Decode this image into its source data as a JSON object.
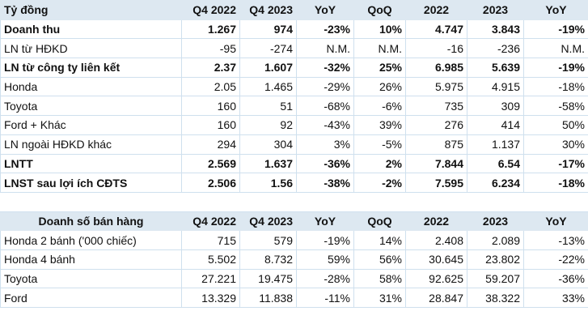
{
  "profit_table": {
    "header": [
      "Tỷ đồng",
      "Q4 2022",
      "Q4 2023",
      "YoY",
      "QoQ",
      "2022",
      "2023",
      "YoY"
    ],
    "rows": [
      {
        "label": "Doanh thu",
        "cells": [
          "1.267",
          "974",
          "-23%",
          "10%",
          "4.747",
          "3.843",
          "-19%"
        ],
        "bold": true
      },
      {
        "label": "LN từ HĐKD",
        "cells": [
          "-95",
          "-274",
          "N.M.",
          "N.M.",
          "-16",
          "-236",
          "N.M."
        ],
        "bold": false
      },
      {
        "label": "LN từ công ty liên kết",
        "cells": [
          "2.37",
          "1.607",
          "-32%",
          "25%",
          "6.985",
          "5.639",
          "-19%"
        ],
        "bold": true
      },
      {
        "label": "Honda",
        "cells": [
          "2.05",
          "1.465",
          "-29%",
          "26%",
          "5.975",
          "4.915",
          "-18%"
        ],
        "bold": false
      },
      {
        "label": "Toyota",
        "cells": [
          "160",
          "51",
          "-68%",
          "-6%",
          "735",
          "309",
          "-58%"
        ],
        "bold": false
      },
      {
        "label": "Ford + Khác",
        "cells": [
          "160",
          "92",
          "-43%",
          "39%",
          "276",
          "414",
          "50%"
        ],
        "bold": false
      },
      {
        "label": "LN ngoài HĐKD khác",
        "cells": [
          "294",
          "304",
          "3%",
          "-5%",
          "875",
          "1.137",
          "30%"
        ],
        "bold": false
      },
      {
        "label": "LNTT",
        "cells": [
          "2.569",
          "1.637",
          "-36%",
          "2%",
          "7.844",
          "6.54",
          "-17%"
        ],
        "bold": true
      },
      {
        "label": "LNST sau lợi ích CĐTS",
        "cells": [
          "2.506",
          "1.56",
          "-38%",
          "-2%",
          "7.595",
          "6.234",
          "-18%"
        ],
        "bold": true
      }
    ]
  },
  "sales_table": {
    "header": [
      "Doanh số bán hàng",
      "Q4 2022",
      "Q4 2023",
      "YoY",
      "QoQ",
      "2022",
      "2023",
      "YoY"
    ],
    "rows": [
      {
        "label": "Honda 2 bánh ('000 chiếc)",
        "cells": [
          "715",
          "579",
          "-19%",
          "14%",
          "2.408",
          "2.089",
          "-13%"
        ]
      },
      {
        "label": "Honda 4 bánh",
        "cells": [
          "5.502",
          "8.732",
          "59%",
          "56%",
          "30.645",
          "23.802",
          "-22%"
        ]
      },
      {
        "label": "Toyota",
        "cells": [
          "27.221",
          "19.475",
          "-28%",
          "58%",
          "92.625",
          "59.207",
          "-36%"
        ]
      },
      {
        "label": "Ford",
        "cells": [
          "13.329",
          "11.838",
          "-11%",
          "31%",
          "28.847",
          "38.322",
          "33%"
        ]
      }
    ]
  }
}
